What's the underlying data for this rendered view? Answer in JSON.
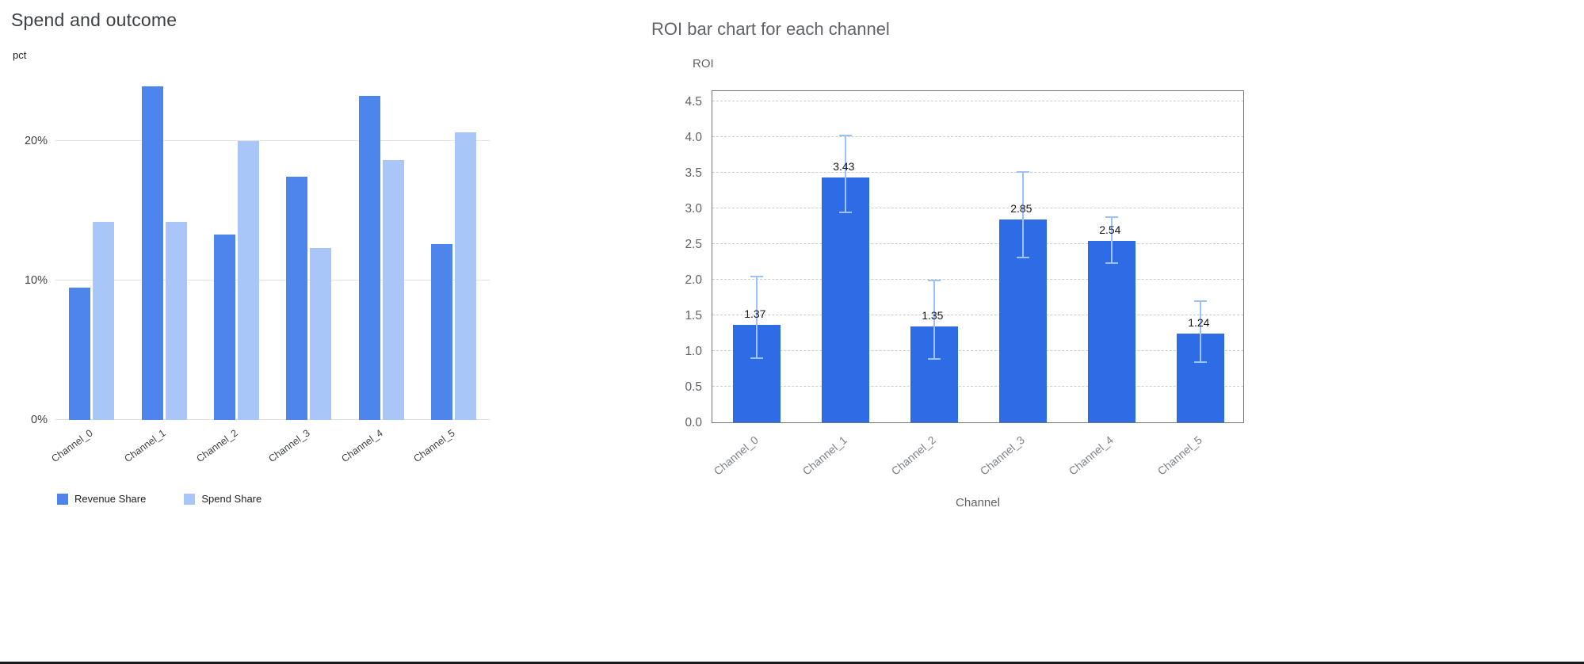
{
  "chart_data": [
    {
      "type": "bar",
      "title": "Spend and outcome",
      "xlabel": "",
      "ylabel": "pct",
      "categories": [
        "Channel_0",
        "Channel_1",
        "Channel_2",
        "Channel_3",
        "Channel_4",
        "Channel_5"
      ],
      "series": [
        {
          "name": "Revenue Share",
          "color": "#4e85ec",
          "values": [
            9.5,
            23.9,
            13.3,
            17.4,
            23.2,
            12.6
          ]
        },
        {
          "name": "Spend Share",
          "color": "#a8c7f8",
          "values": [
            14.2,
            14.2,
            20.0,
            12.3,
            18.6,
            20.6
          ]
        }
      ],
      "yticks": [
        {
          "value": 0,
          "label": "0%"
        },
        {
          "value": 10,
          "label": "10%"
        },
        {
          "value": 20,
          "label": "20%"
        }
      ],
      "ylim": [
        0,
        24.4
      ],
      "grid": true,
      "legend_position": "bottom"
    },
    {
      "type": "bar",
      "title": "ROI bar chart for each channel",
      "xlabel": "Channel",
      "ylabel": "ROI",
      "categories": [
        "Channel_0",
        "Channel_1",
        "Channel_2",
        "Channel_3",
        "Channel_4",
        "Channel_5"
      ],
      "values": [
        1.37,
        3.43,
        1.35,
        2.85,
        2.54,
        1.24
      ],
      "value_labels": [
        "1.37",
        "3.43",
        "1.35",
        "2.85",
        "2.54",
        "1.24"
      ],
      "error_low": [
        0.9,
        2.95,
        0.89,
        2.31,
        2.23,
        0.85
      ],
      "error_high": [
        2.05,
        4.02,
        1.99,
        3.51,
        2.88,
        1.7
      ],
      "yticks": [
        {
          "value": 0.0,
          "label": "0.0"
        },
        {
          "value": 0.5,
          "label": "0.5"
        },
        {
          "value": 1.0,
          "label": "1.0"
        },
        {
          "value": 1.5,
          "label": "1.5"
        },
        {
          "value": 2.0,
          "label": "2.0"
        },
        {
          "value": 2.5,
          "label": "2.5"
        },
        {
          "value": 3.0,
          "label": "3.0"
        },
        {
          "value": 3.5,
          "label": "3.5"
        },
        {
          "value": 4.0,
          "label": "4.0"
        },
        {
          "value": 4.5,
          "label": "4.5"
        }
      ],
      "ylim": [
        0,
        4.65
      ],
      "bar_color": "#2d6ce4",
      "error_color": "#9dc2f8",
      "grid": "dashed"
    }
  ]
}
